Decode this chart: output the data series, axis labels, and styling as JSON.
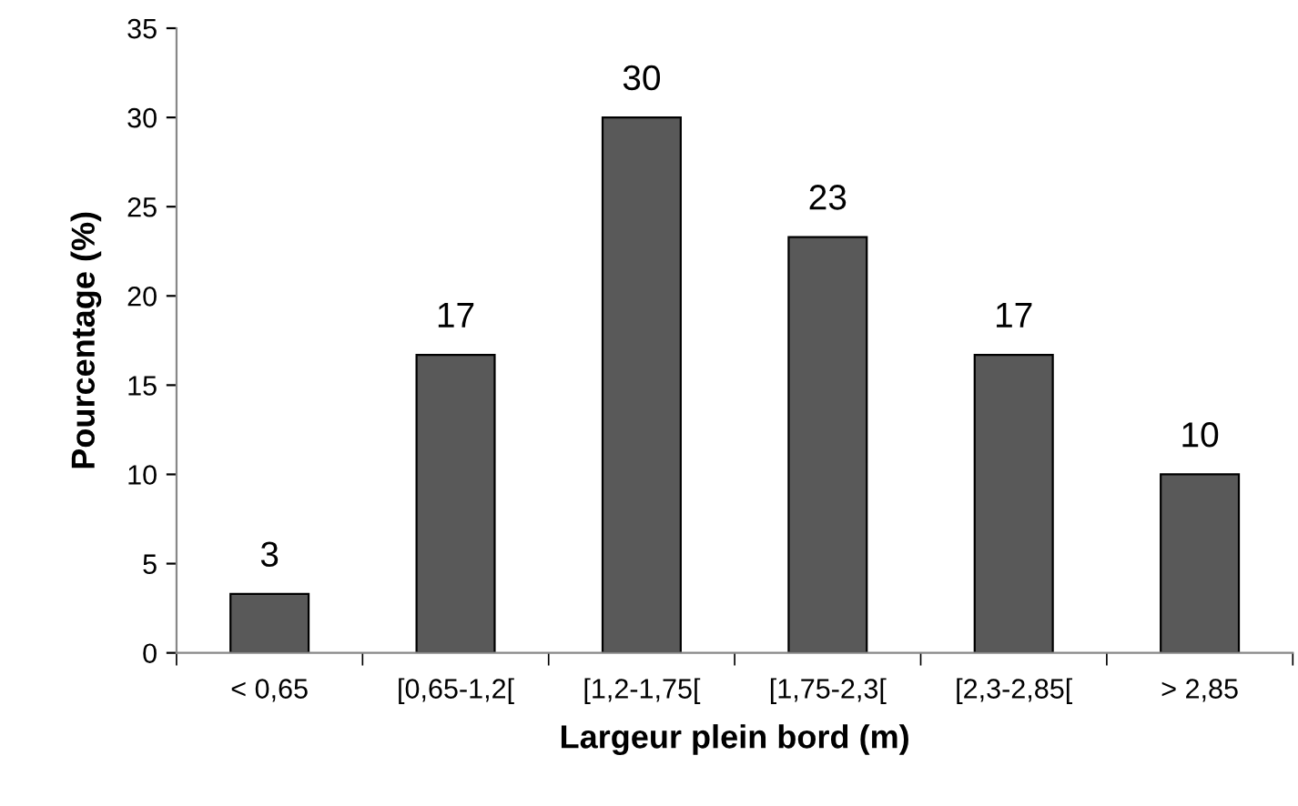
{
  "chart_data": {
    "type": "bar",
    "xlabel": "Largeur plein bord (m)",
    "ylabel": "Pourcentage (%)",
    "categories": [
      "< 0,65",
      "[0,65-1,2[",
      "[1,2-1,75[",
      "[1,75-2,3[",
      "[2,3-2,85[",
      "> 2,85"
    ],
    "values": [
      3.3,
      16.7,
      30,
      23.3,
      16.7,
      10
    ],
    "value_labels": [
      "3",
      "17",
      "30",
      "23",
      "17",
      "10"
    ],
    "color": "#595959",
    "ylim": [
      0,
      35
    ],
    "yticks": [
      0,
      5,
      10,
      15,
      20,
      25,
      30,
      35
    ],
    "grid": false,
    "legend": false
  }
}
